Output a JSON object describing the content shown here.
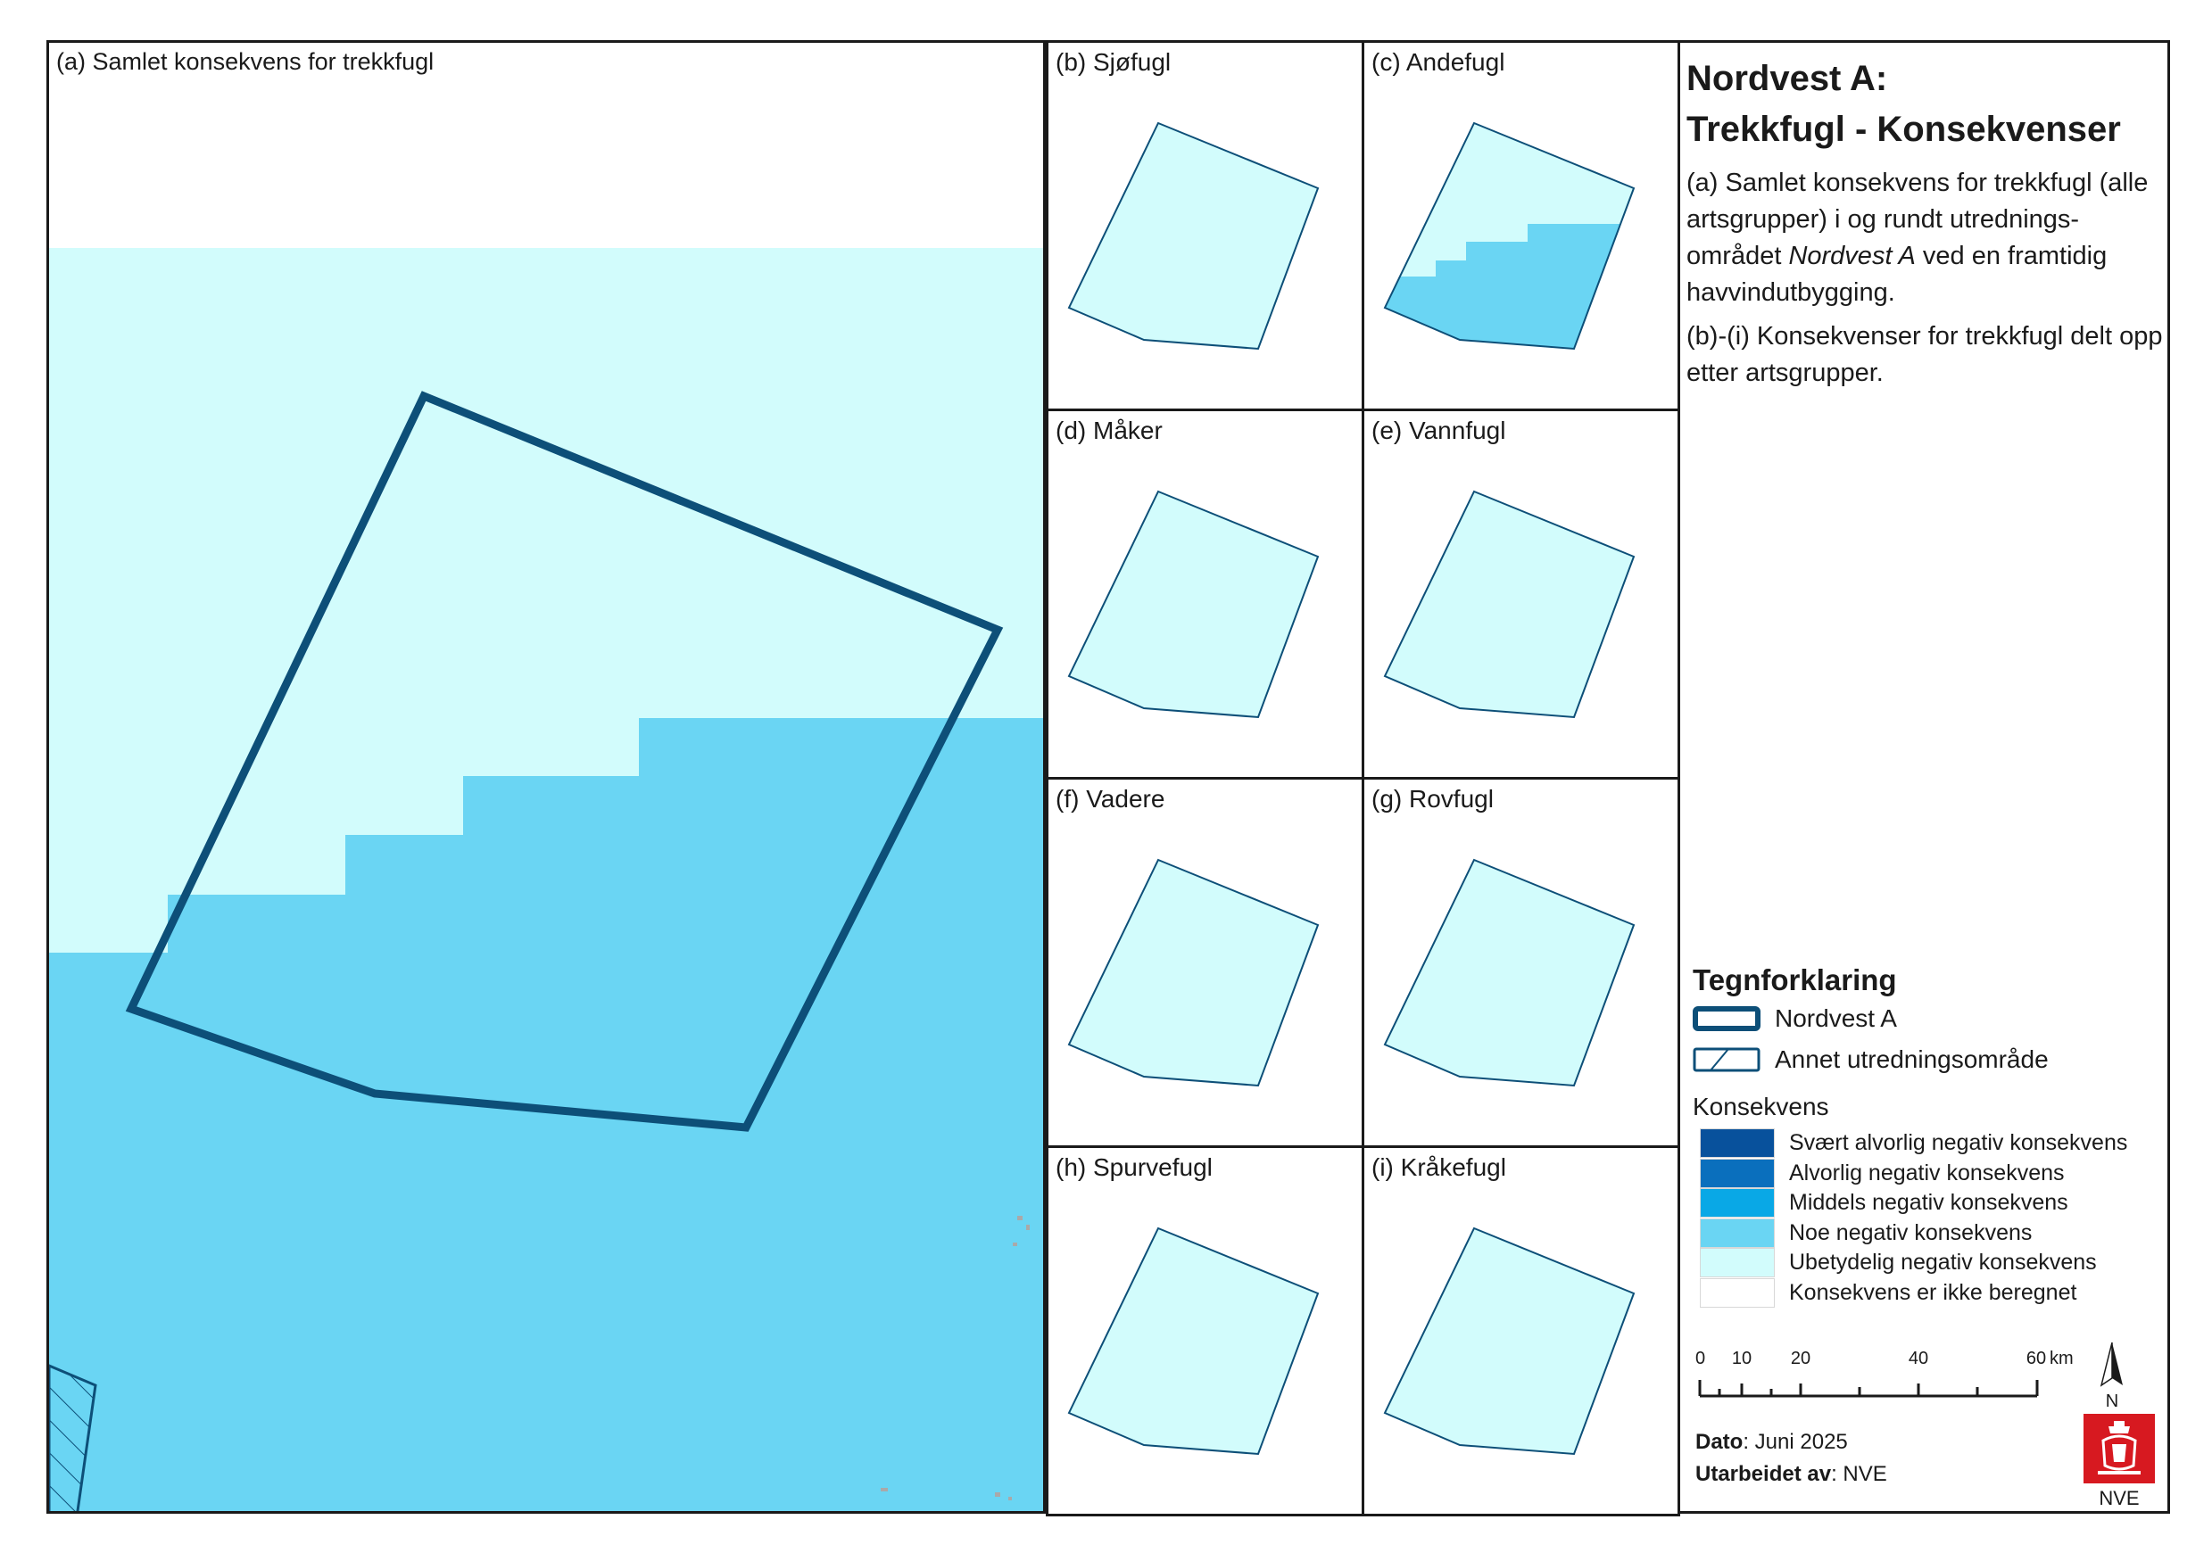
{
  "main_panel": {
    "title": "(a) Samlet konsekvens for trekkfugl"
  },
  "small_panels": [
    {
      "id": "b",
      "title": "(b) Sjøfugl"
    },
    {
      "id": "c",
      "title": "(c) Andefugl"
    },
    {
      "id": "d",
      "title": "(d) Måker"
    },
    {
      "id": "e",
      "title": "(e) Vannfugl"
    },
    {
      "id": "f",
      "title": "(f) Vadere"
    },
    {
      "id": "g",
      "title": "(g) Rovfugl"
    },
    {
      "id": "h",
      "title": "(h) Spurvefugl"
    },
    {
      "id": "i",
      "title": "(i) Kråkefugl"
    }
  ],
  "side": {
    "title_line1": "Nordvest A:",
    "title_line2": "Trekkfugl - Konsekvenser",
    "desc_a_pre": "(a) Samlet konsekvens for trekkfugl (alle artsgrupper) i og rundt utrednings-området ",
    "desc_a_em": "Nordvest A",
    "desc_a_post": " ved en framtidig havvindutbygging.",
    "desc_b": "(b)-(i) Konsekvenser for trekkfugl delt opp etter artsgrupper."
  },
  "legend": {
    "title": "Tegnforklaring",
    "items": [
      {
        "label": "Nordvest A",
        "symbol": "outline-icon"
      },
      {
        "label": "Annet utredningsområde",
        "symbol": "hatched-outline-icon"
      }
    ],
    "konsekvens_title": "Konsekvens",
    "classes": [
      {
        "label": "Svært alvorlig negativ konsekvens",
        "color": "#08519c"
      },
      {
        "label": "Alvorlig negativ konsekvens",
        "color": "#0a6fbd"
      },
      {
        "label": "Middels negativ konsekvens",
        "color": "#09a8e6"
      },
      {
        "label": "Noe negativ konsekvens",
        "color": "#6ad5f3"
      },
      {
        "label": "Ubetydelig negativ konsekvens",
        "color": "#d2fcfc"
      },
      {
        "label": "Konsekvens er ikke beregnet",
        "color": "#ffffff"
      }
    ]
  },
  "scale_bar": {
    "ticks": [
      "0",
      "10",
      "20",
      "40",
      "60"
    ],
    "unit": "km",
    "north": "N"
  },
  "credits": {
    "date_label": "Dato",
    "date_value": ": Juni 2025",
    "author_label": "Utarbeidet av",
    "author_value": ": NVE"
  },
  "logo": {
    "text": "NVE",
    "icon": "nve-lion-logo-icon"
  },
  "colors": {
    "outline": "#0d4f78",
    "ubetydelig": "#d2fcfc",
    "noe": "#6ad5f3",
    "frame": "#1a1a1a",
    "logo_red": "#d71920"
  }
}
